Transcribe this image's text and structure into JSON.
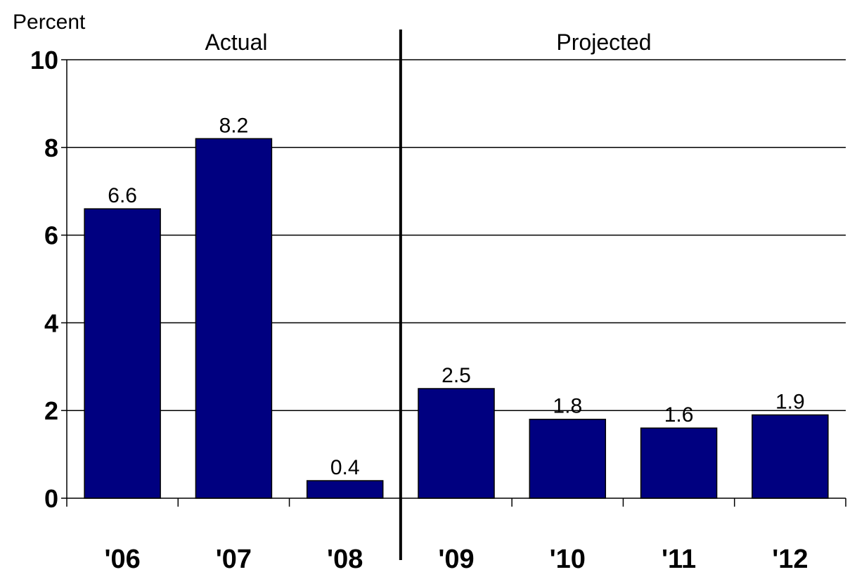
{
  "chart_data": {
    "type": "bar",
    "ylabel": "Percent",
    "ylim": [
      0,
      10
    ],
    "yticks": [
      0,
      2,
      4,
      6,
      8,
      10
    ],
    "grid": true,
    "categories": [
      "'06",
      "'07",
      "'08",
      "'09",
      "'10",
      "'11",
      "'12"
    ],
    "values": [
      6.6,
      8.2,
      0.4,
      2.5,
      1.8,
      1.6,
      1.9
    ],
    "data_labels": [
      "6.6",
      "8.2",
      "0.4",
      "2.5",
      "1.8",
      "1.6",
      "1.9"
    ],
    "sections": [
      {
        "label": "Actual",
        "categories": [
          "'06",
          "'07",
          "'08"
        ]
      },
      {
        "label": "Projected",
        "categories": [
          "'09",
          "'10",
          "'11",
          "'12"
        ]
      }
    ],
    "colors": {
      "bar": "#000080",
      "outline": "#000000",
      "grid": "#000000"
    }
  }
}
